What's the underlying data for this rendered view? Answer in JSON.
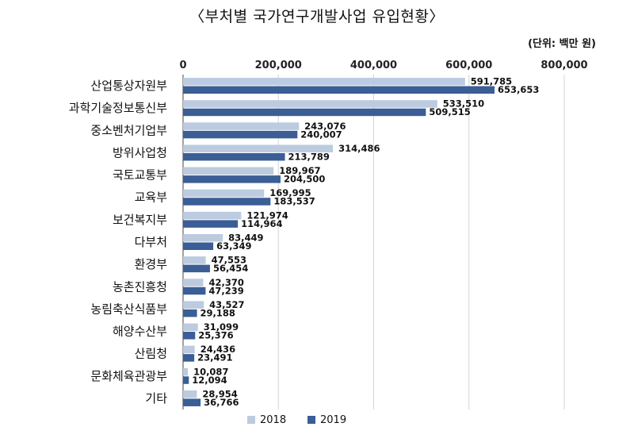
{
  "chart_data": {
    "type": "bar",
    "orientation": "horizontal",
    "title": "〈부처별 국가연구개발사업 유입현황〉",
    "unit": "(단위: 백만 원)",
    "xlim": [
      0,
      800000
    ],
    "xticks": [
      "0",
      "200,000",
      "400,000",
      "600,000",
      "800,000"
    ],
    "grid": true,
    "legend_position": "bottom-center",
    "categories": [
      "산업통상자원부",
      "과학기술정보통신부",
      "중소벤처기업부",
      "방위사업청",
      "국토교통부",
      "교육부",
      "보건복지부",
      "다부처",
      "환경부",
      "농촌진흥청",
      "농림축산식품부",
      "해양수산부",
      "산림청",
      "문화체육관광부",
      "기타"
    ],
    "series": [
      {
        "name": "2018",
        "color": "#bccbdf",
        "values": [
          591785,
          533510,
          243076,
          314486,
          189967,
          169995,
          121974,
          83449,
          47553,
          42370,
          43527,
          31099,
          24436,
          10087,
          28954
        ],
        "labels": [
          "591,785",
          "533,510",
          "243,076",
          "314,486",
          "189,967",
          "169,995",
          "121,974",
          "83,449",
          "47,553",
          "42,370",
          "43,527",
          "31,099",
          "24,436",
          "10,087",
          "28,954"
        ]
      },
      {
        "name": "2019",
        "color": "#3a5e95",
        "values": [
          653653,
          509515,
          240007,
          213789,
          204500,
          183537,
          114964,
          63349,
          56454,
          47239,
          29188,
          25376,
          23491,
          12094,
          36766
        ],
        "labels": [
          "653,653",
          "509,515",
          "240,007",
          "213,789",
          "204,500",
          "183,537",
          "114,964",
          "63,349",
          "56,454",
          "47,239",
          "29,188",
          "25,376",
          "23,491",
          "12,094",
          "36,766"
        ]
      }
    ]
  }
}
